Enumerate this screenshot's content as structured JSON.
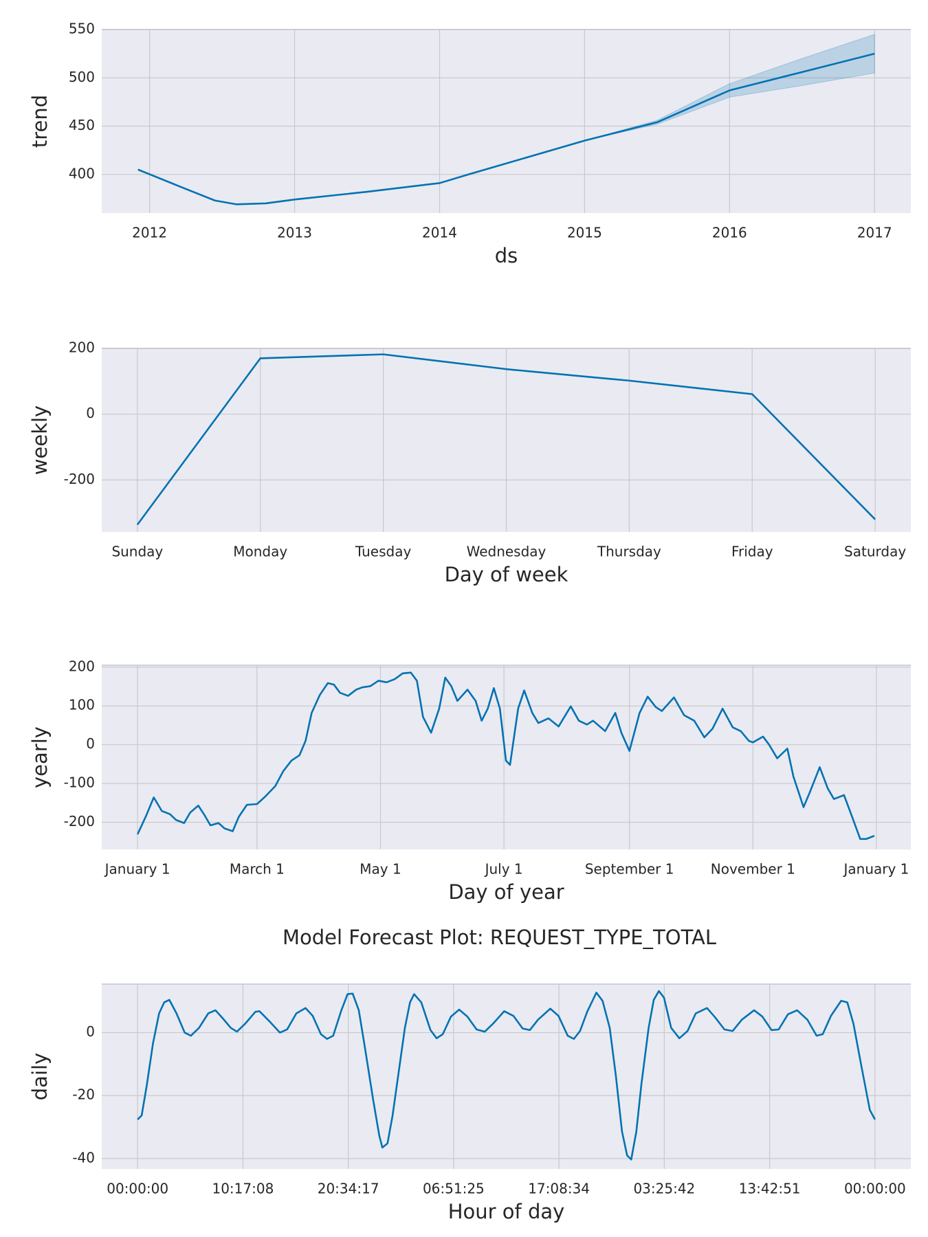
{
  "chart_data": [
    {
      "type": "line",
      "xlabel": "ds",
      "ylabel": "trend",
      "color": "#0072b2",
      "band_color": "#0072b2",
      "grid": true,
      "x": [
        2011.92,
        2012.2,
        2012.45,
        2012.6,
        2012.8,
        2013,
        2013.5,
        2014,
        2014.2,
        2015,
        2015.5,
        2016,
        2016.5,
        2017
      ],
      "values": [
        405,
        388,
        373,
        369,
        370,
        374,
        382,
        391,
        400,
        435,
        454,
        487,
        506,
        525
      ],
      "lower": [
        405,
        388,
        373,
        369,
        370,
        374,
        382,
        391,
        400,
        435,
        452,
        480,
        492,
        505
      ],
      "upper": [
        405,
        388,
        373,
        369,
        370,
        374,
        382,
        391,
        400,
        435,
        456,
        494,
        520,
        545
      ],
      "xlim": [
        2011.67,
        2017.25
      ],
      "xticks": [
        2012,
        2013,
        2014,
        2015,
        2016,
        2017
      ],
      "ylim": [
        360,
        550
      ],
      "yticks": [
        400,
        450,
        500,
        550
      ]
    },
    {
      "type": "line",
      "xlabel": "Day of week",
      "ylabel": "weekly",
      "color": "#0072b2",
      "grid": true,
      "categories": [
        "Sunday",
        "Monday",
        "Tuesday",
        "Wednesday",
        "Thursday",
        "Friday",
        "Saturday"
      ],
      "values": [
        -336,
        170,
        182,
        137,
        102,
        61,
        -320
      ],
      "ylim": [
        -358,
        200
      ],
      "yticks": [
        -200,
        0,
        200
      ]
    },
    {
      "type": "line",
      "xlabel": "Day of year",
      "ylabel": "yearly",
      "color": "#0072b2",
      "grid": true,
      "x": [
        0,
        4,
        8,
        12,
        16,
        19,
        23,
        26,
        30,
        33,
        36,
        40,
        43,
        47,
        50,
        54,
        59,
        63,
        68,
        72,
        76,
        80,
        83,
        86,
        90,
        94,
        97,
        100,
        104,
        108,
        111,
        115,
        119,
        123,
        127,
        131,
        135,
        138,
        141,
        145,
        149,
        152,
        155,
        158,
        163,
        167,
        170,
        173,
        176,
        179,
        182,
        184,
        188,
        191,
        195,
        198,
        203,
        208,
        214,
        218,
        222,
        225,
        231,
        236,
        239,
        243,
        248,
        252,
        256,
        259,
        265,
        270,
        275,
        280,
        284,
        289,
        294,
        298,
        302,
        304,
        309,
        312,
        316,
        321,
        324,
        329,
        332,
        337,
        341,
        344,
        349,
        353,
        357,
        360,
        364
      ],
      "values": [
        -231,
        -186,
        -136,
        -171,
        -179,
        -194,
        -202,
        -175,
        -157,
        -181,
        -208,
        -202,
        -216,
        -223,
        -186,
        -155,
        -153,
        -134,
        -107,
        -68,
        -41,
        -27,
        10,
        82,
        128,
        159,
        155,
        134,
        126,
        142,
        148,
        151,
        165,
        161,
        169,
        184,
        186,
        165,
        72,
        31,
        93,
        173,
        151,
        113,
        142,
        113,
        62,
        93,
        146,
        93,
        -41,
        -52,
        93,
        140,
        82,
        56,
        68,
        47,
        99,
        62,
        52,
        62,
        35,
        82,
        31,
        -16,
        82,
        124,
        97,
        87,
        122,
        76,
        62,
        19,
        41,
        93,
        45,
        35,
        10,
        6,
        21,
        0,
        -35,
        -10,
        -82,
        -161,
        -124,
        -58,
        -113,
        -140,
        -130,
        -186,
        -243,
        -243,
        -235
      ],
      "xlim": [
        -17.7,
        382
      ],
      "xticks": [
        {
          "value": 0,
          "label": "January 1"
        },
        {
          "value": 59,
          "label": "March 1"
        },
        {
          "value": 120,
          "label": "May 1"
        },
        {
          "value": 181,
          "label": "July 1"
        },
        {
          "value": 243,
          "label": "September 1"
        },
        {
          "value": 304,
          "label": "November 1"
        },
        {
          "value": 365,
          "label": "January 1"
        }
      ],
      "ylim": [
        -270,
        205
      ],
      "yticks": [
        -200,
        -100,
        0,
        100,
        200
      ]
    },
    {
      "type": "line",
      "title": "Model Forecast Plot: REQUEST_TYPE_TOTAL",
      "xlabel": "Hour of day",
      "ylabel": "daily",
      "color": "#0072b2",
      "grid": true,
      "x": [
        0,
        0.4,
        0.9,
        1.5,
        2.1,
        2.6,
        3.1,
        3.8,
        4.6,
        5.2,
        6.0,
        6.9,
        7.6,
        8.3,
        9.1,
        9.7,
        10.5,
        11.5,
        11.9,
        12.9,
        13.9,
        14.6,
        15.5,
        16.4,
        17.1,
        17.9,
        18.5,
        19.1,
        19.9,
        20.5,
        21.0,
        21.6,
        22.2,
        23.0,
        23.6,
        23.9,
        24.4,
        24.9,
        25.5,
        26.1,
        26.6,
        27.0,
        27.7,
        28.6,
        29.2,
        29.8,
        30.6,
        31.4,
        32.2,
        33.1,
        33.9,
        34.7,
        35.8,
        36.7,
        37.6,
        38.3,
        39.1,
        40.3,
        41.1,
        42.0,
        42.6,
        43.2,
        43.9,
        44.8,
        45.4,
        46.1,
        46.7,
        47.3,
        47.8,
        48.2,
        48.7,
        49.2,
        49.9,
        50.4,
        50.9,
        51.4,
        52.1,
        52.9,
        53.7,
        54.5,
        55.6,
        56.4,
        57.3,
        58.1,
        59.0,
        60.2,
        61.0,
        61.9,
        62.6,
        63.5,
        64.4,
        65.4,
        66.3,
        66.9,
        67.7,
        68.7,
        69.3,
        69.9,
        70.7,
        71.5,
        72.0
      ],
      "values": [
        -27.6,
        -26.3,
        -16.7,
        -3.5,
        6.1,
        9.6,
        10.4,
        6.1,
        0,
        -1,
        1.5,
        6.1,
        7.1,
        4.6,
        1.5,
        0.3,
        2.8,
        6.6,
        6.8,
        3.5,
        0,
        1,
        6.1,
        7.8,
        5.3,
        -0.5,
        -2,
        -1,
        7.1,
        12.2,
        12.4,
        7.1,
        -4.8,
        -21.3,
        -32.7,
        -36.5,
        -35.2,
        -26.3,
        -12.4,
        1.5,
        9.6,
        12.2,
        9.6,
        0.8,
        -1.8,
        -0.5,
        5.1,
        7.3,
        5.1,
        1,
        0.3,
        2.8,
        6.8,
        5.3,
        1.3,
        0.8,
        4.1,
        7.6,
        5.3,
        -1,
        -2,
        0.5,
        6.6,
        12.7,
        10.1,
        1.5,
        -13.7,
        -31.4,
        -39,
        -40.3,
        -31.4,
        -16.2,
        1.5,
        10.4,
        13.2,
        11.1,
        1.5,
        -1.8,
        0.5,
        6.1,
        7.8,
        4.8,
        1,
        0.5,
        4.1,
        7.1,
        5.1,
        0.8,
        1,
        5.8,
        7.1,
        4.1,
        -1,
        -0.5,
        5.3,
        10.1,
        9.6,
        2.8,
        -11.1,
        -24.6,
        -27.6
      ],
      "xlim": [
        -3.5,
        75.5
      ],
      "xticks": [
        {
          "value": 0,
          "label": "00:00:00"
        },
        {
          "value": 10.2857,
          "label": "10:17:08"
        },
        {
          "value": 20.5714,
          "label": "20:34:17"
        },
        {
          "value": 30.8571,
          "label": "06:51:25"
        },
        {
          "value": 41.1429,
          "label": "17:08:34"
        },
        {
          "value": 51.4286,
          "label": "03:25:42"
        },
        {
          "value": 61.7143,
          "label": "13:42:51"
        },
        {
          "value": 72,
          "label": "00:00:00"
        }
      ],
      "ylim": [
        -43.3,
        15.4
      ],
      "yticks": [
        -40,
        -20,
        0
      ]
    }
  ]
}
